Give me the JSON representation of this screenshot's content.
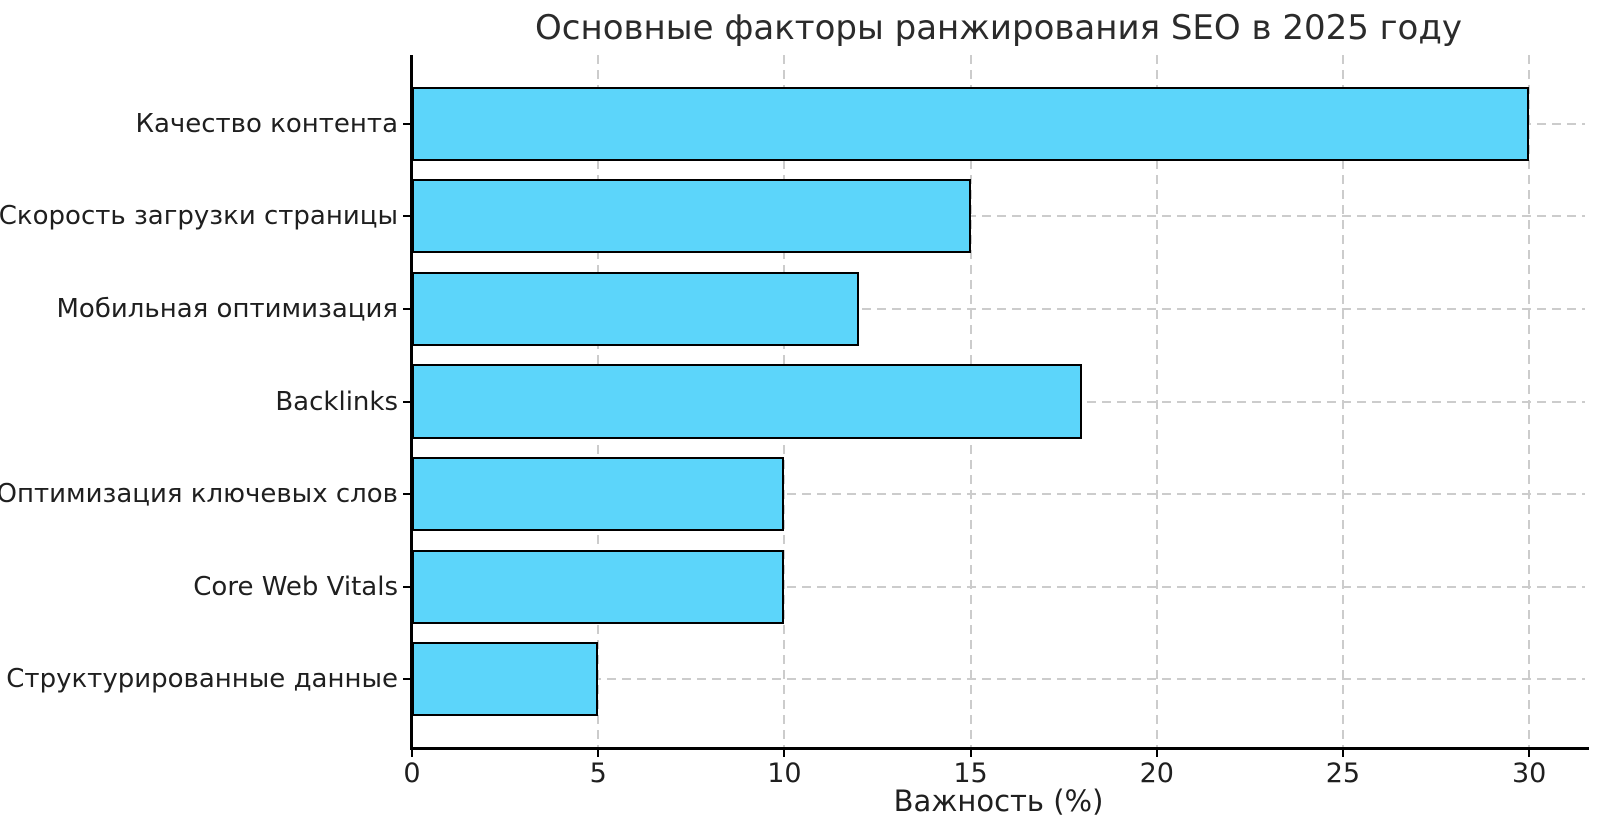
{
  "chart_data": {
    "type": "bar",
    "orientation": "horizontal",
    "title": "Основные факторы ранжирования SEO в 2025 году",
    "xlabel": "Важность (%)",
    "ylabel": "",
    "categories": [
      "Качество контента",
      "Скорость загрузки страницы",
      "Мобильная оптимизация",
      "Backlinks",
      "Оптимизация ключевых слов",
      "Core Web Vitals",
      "Структурированные данные"
    ],
    "values": [
      30,
      15,
      12,
      18,
      10,
      10,
      5
    ],
    "xticks": [
      0,
      5,
      10,
      15,
      20,
      25,
      30
    ],
    "xlim": [
      0,
      31.5
    ],
    "grid": true,
    "grid_style": "dashed",
    "legend": false,
    "bar_color": "#5cd5fa",
    "bar_edge_color": "#000000",
    "grid_color": "#cccccc",
    "text_color": "#1f1f1f"
  }
}
